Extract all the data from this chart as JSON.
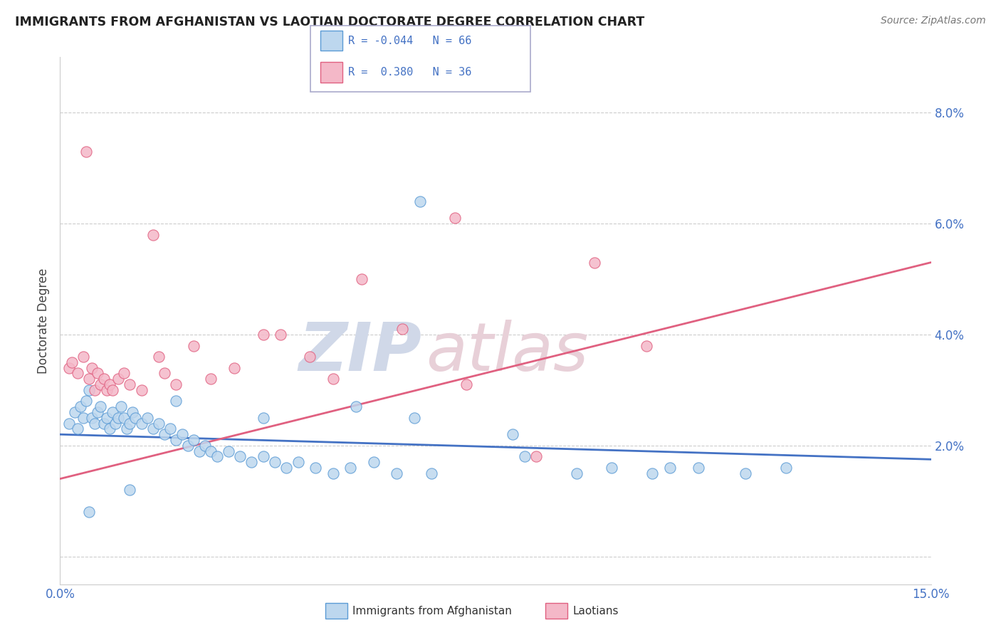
{
  "title": "IMMIGRANTS FROM AFGHANISTAN VS LAOTIAN DOCTORATE DEGREE CORRELATION CHART",
  "source": "Source: ZipAtlas.com",
  "ylabel": "Doctorate Degree",
  "xlim": [
    0.0,
    15.0
  ],
  "ylim": [
    -0.5,
    9.0
  ],
  "yticks": [
    0.0,
    2.0,
    4.0,
    6.0,
    8.0
  ],
  "ytick_labels": [
    "",
    "2.0%",
    "4.0%",
    "6.0%",
    "8.0%"
  ],
  "color_blue": "#5B9BD5",
  "color_blue_fill": "#BDD7EE",
  "color_pink": "#E06080",
  "color_pink_fill": "#F4B8C8",
  "color_blue_text": "#4472C4",
  "watermark_zip": "ZIP",
  "watermark_atlas": "atlas",
  "blue_line_x": [
    0.0,
    15.0
  ],
  "blue_line_y": [
    2.2,
    1.75
  ],
  "pink_line_x": [
    0.0,
    15.0
  ],
  "pink_line_y": [
    1.4,
    5.3
  ],
  "blue_points_x": [
    0.15,
    0.25,
    0.3,
    0.35,
    0.4,
    0.45,
    0.5,
    0.55,
    0.6,
    0.65,
    0.7,
    0.75,
    0.8,
    0.85,
    0.9,
    0.95,
    1.0,
    1.05,
    1.1,
    1.15,
    1.2,
    1.25,
    1.3,
    1.4,
    1.5,
    1.6,
    1.7,
    1.8,
    1.9,
    2.0,
    2.1,
    2.2,
    2.3,
    2.4,
    2.5,
    2.6,
    2.7,
    2.9,
    3.1,
    3.3,
    3.5,
    3.7,
    3.9,
    4.1,
    4.4,
    4.7,
    5.0,
    5.4,
    5.8,
    6.1,
    6.4,
    7.8,
    8.9,
    9.5,
    10.2,
    11.0,
    11.8,
    12.5,
    5.1,
    6.2,
    8.0,
    10.5,
    2.0,
    1.2,
    0.5,
    3.5
  ],
  "blue_points_y": [
    2.4,
    2.6,
    2.3,
    2.7,
    2.5,
    2.8,
    3.0,
    2.5,
    2.4,
    2.6,
    2.7,
    2.4,
    2.5,
    2.3,
    2.6,
    2.4,
    2.5,
    2.7,
    2.5,
    2.3,
    2.4,
    2.6,
    2.5,
    2.4,
    2.5,
    2.3,
    2.4,
    2.2,
    2.3,
    2.1,
    2.2,
    2.0,
    2.1,
    1.9,
    2.0,
    1.9,
    1.8,
    1.9,
    1.8,
    1.7,
    1.8,
    1.7,
    1.6,
    1.7,
    1.6,
    1.5,
    1.6,
    1.7,
    1.5,
    2.5,
    1.5,
    2.2,
    1.5,
    1.6,
    1.5,
    1.6,
    1.5,
    1.6,
    2.7,
    6.4,
    1.8,
    1.6,
    2.8,
    1.2,
    0.8,
    2.5
  ],
  "pink_points_x": [
    0.15,
    0.2,
    0.3,
    0.4,
    0.5,
    0.55,
    0.6,
    0.65,
    0.7,
    0.75,
    0.8,
    0.85,
    0.9,
    1.0,
    1.1,
    1.2,
    1.4,
    1.6,
    1.8,
    2.0,
    2.3,
    2.6,
    3.0,
    3.5,
    4.3,
    4.7,
    5.2,
    5.9,
    6.8,
    8.2,
    9.2,
    10.1,
    0.45,
    1.7,
    3.8,
    7.0
  ],
  "pink_points_y": [
    3.4,
    3.5,
    3.3,
    3.6,
    3.2,
    3.4,
    3.0,
    3.3,
    3.1,
    3.2,
    3.0,
    3.1,
    3.0,
    3.2,
    3.3,
    3.1,
    3.0,
    5.8,
    3.3,
    3.1,
    3.8,
    3.2,
    3.4,
    4.0,
    3.6,
    3.2,
    5.0,
    4.1,
    6.1,
    1.8,
    5.3,
    3.8,
    7.3,
    3.6,
    4.0,
    3.1
  ],
  "background_color": "#FFFFFF",
  "grid_color": "#CCCCCC",
  "legend_border_color": "#AAAACC"
}
